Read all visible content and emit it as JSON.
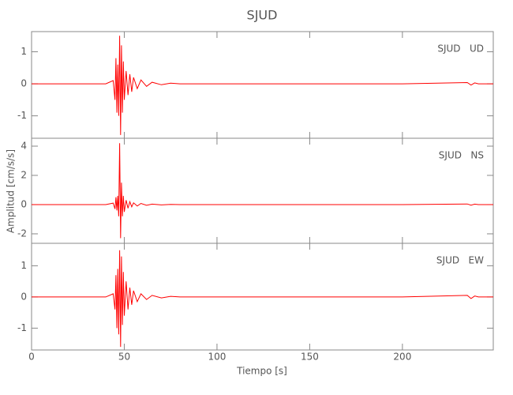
{
  "chart_data": {
    "type": "line",
    "title": "SJUD",
    "xlabel": "Tiempo [s]",
    "ylabel": "Amplitud [cm/s/s]",
    "x": [
      0,
      20,
      40,
      44,
      45,
      45.5,
      46,
      46.5,
      47,
      47.5,
      48,
      48.5,
      49,
      49.5,
      50,
      51,
      52,
      53,
      54,
      55,
      57,
      59,
      62,
      65,
      70,
      75,
      80,
      100,
      150,
      200,
      235,
      237,
      239,
      241,
      249
    ],
    "xlim": [
      0,
      249
    ],
    "xticks": [
      0,
      50,
      100,
      150,
      200
    ],
    "panels": [
      {
        "label": "SJUD   UD",
        "color": "#ff0000",
        "ylim": [
          -1.7,
          1.63
        ],
        "yticks": [
          -1,
          0,
          1
        ],
        "values": [
          0,
          0,
          0,
          0.1,
          -0.5,
          0.8,
          -0.9,
          0.6,
          -1.0,
          1.5,
          -1.6,
          1.2,
          -0.9,
          0.7,
          -0.5,
          0.4,
          -0.35,
          0.3,
          -0.25,
          0.2,
          -0.15,
          0.12,
          -0.08,
          0.05,
          -0.03,
          0.02,
          0,
          0,
          0,
          0,
          0.04,
          -0.04,
          0.03,
          0,
          0
        ]
      },
      {
        "label": "SJUD   NS",
        "color": "#ff0000",
        "ylim": [
          -2.65,
          4.54
        ],
        "yticks": [
          -2,
          0,
          2,
          4
        ],
        "values": [
          0,
          0,
          0,
          0.1,
          -0.3,
          0.5,
          -0.4,
          0.6,
          -0.8,
          4.2,
          -2.3,
          1.5,
          -0.8,
          0.6,
          -0.5,
          0.3,
          -0.25,
          0.2,
          -0.15,
          0.12,
          -0.1,
          0.08,
          -0.05,
          0.03,
          -0.02,
          0.01,
          0,
          0,
          0,
          0,
          0.04,
          -0.04,
          0.03,
          0,
          0
        ]
      },
      {
        "label": "SJUD   EW",
        "color": "#ff0000",
        "ylim": [
          -1.7,
          1.72
        ],
        "yticks": [
          -1,
          0,
          1
        ],
        "values": [
          0,
          0,
          0,
          0.1,
          -0.4,
          0.7,
          -1.0,
          0.9,
          -1.2,
          1.5,
          -1.6,
          1.3,
          -0.9,
          0.8,
          -0.6,
          0.5,
          -0.4,
          0.3,
          -0.25,
          0.2,
          -0.15,
          0.1,
          -0.08,
          0.05,
          -0.03,
          0.02,
          0,
          0,
          0,
          0,
          0.05,
          -0.05,
          0.03,
          0,
          0
        ]
      }
    ]
  }
}
